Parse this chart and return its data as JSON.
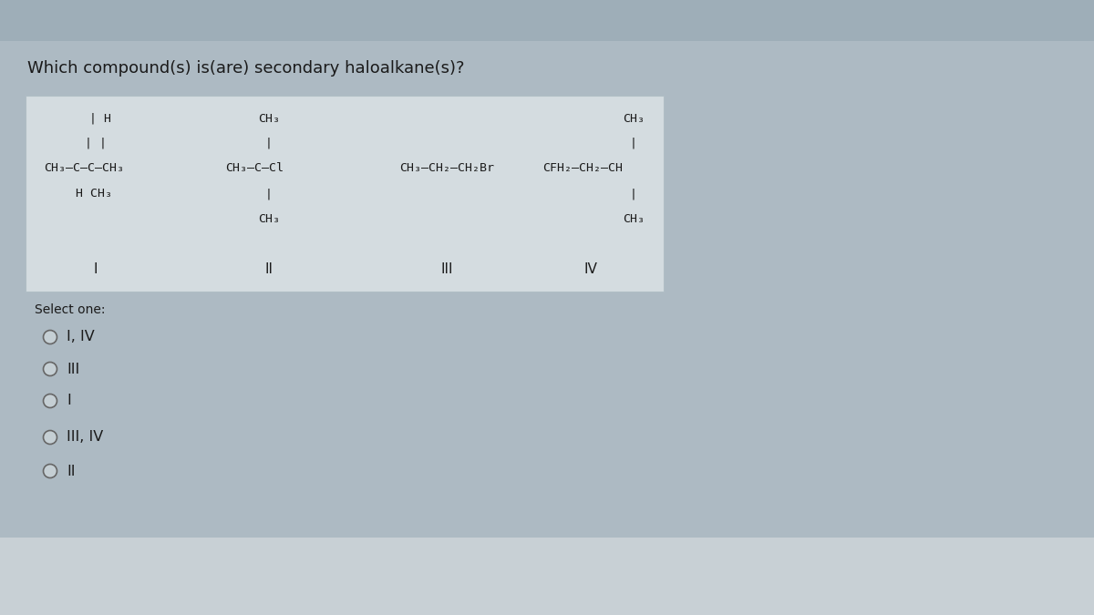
{
  "title": "Which compound(s) is(are) secondary haloalkane(s)?",
  "title_fontsize": 13,
  "background_top": "#9eaeb8",
  "background_main": "#adbac3",
  "background_bottom": "#c8d0d5",
  "box_facecolor": "#d4dce0",
  "box_edgecolor": "#b0bec5",
  "font_color": "#1a1a1a",
  "select_one_text": "Select one:",
  "options": [
    "I, IV",
    "III",
    "I",
    "III, IV",
    "II"
  ],
  "monospace_font": "DejaVu Sans Mono",
  "sans_font": "DejaVu Sans"
}
